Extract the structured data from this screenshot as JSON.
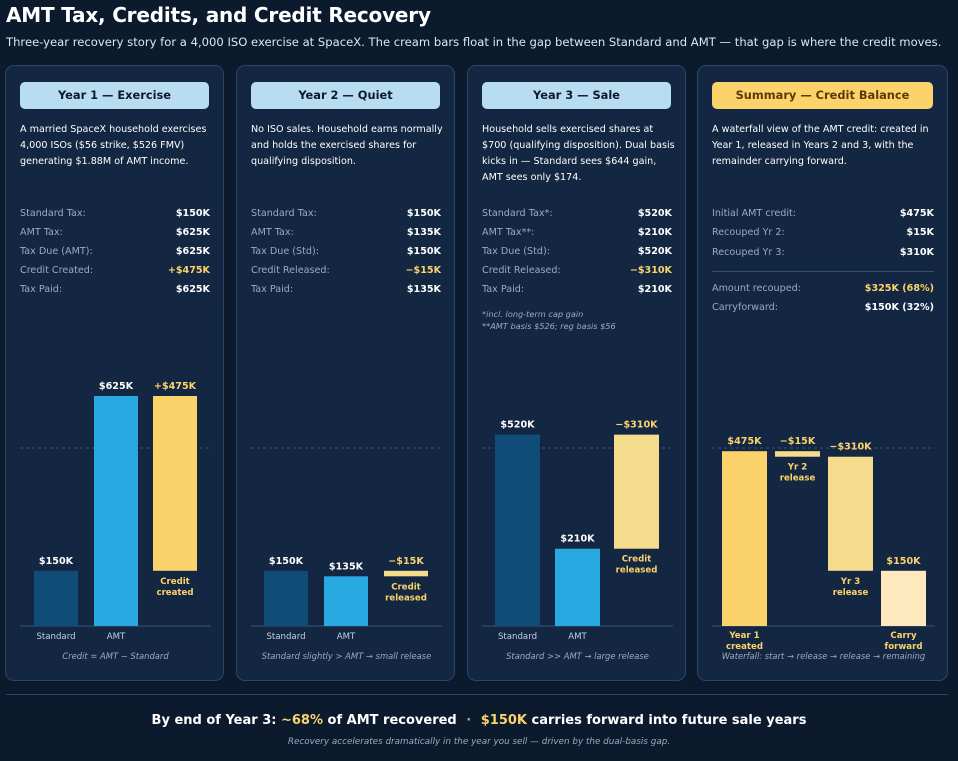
{
  "header": {
    "title": "AMT Tax, Credits, and Credit Recovery",
    "subtitle": "Three-year recovery story for a 4,000 ISO exercise at SpaceX. The cream bars float in the gap between Standard and AMT — that gap is where the credit moves."
  },
  "colors": {
    "standard": "#0f4d78",
    "amt": "#29a9e1",
    "credit": "#fcd36b",
    "release": "#f5dc8c",
    "carryforward": "#fde9bd",
    "label_gold": "#fcd36b"
  },
  "panels": [
    {
      "header": "Year 1 — Exercise",
      "description": "A married SpaceX household exercises 4,000 ISOs ($56 strike, $526 FMV) generating $1.88M of AMT income.",
      "stats": [
        {
          "label": "Standard Tax:",
          "value": "$150K"
        },
        {
          "label": "AMT Tax:",
          "value": "$625K"
        },
        {
          "label": "Tax Due (AMT):",
          "value": "$625K"
        },
        {
          "label": "Credit Created:",
          "value": "+$475K"
        },
        {
          "label": "Tax Paid:",
          "value": "$625K"
        }
      ],
      "caption": "Credit = AMT − Standard"
    },
    {
      "header": "Year 2 — Quiet",
      "description": "No ISO sales. Household earns normally and holds the exercised shares for qualifying disposition.",
      "stats": [
        {
          "label": "Standard Tax:",
          "value": "$150K"
        },
        {
          "label": "AMT Tax:",
          "value": "$135K"
        },
        {
          "label": "Tax Due (Std):",
          "value": "$150K"
        },
        {
          "label": "Credit Released:",
          "value": "−$15K"
        },
        {
          "label": "Tax Paid:",
          "value": "$135K"
        }
      ],
      "caption": "Standard slightly > AMT → small release"
    },
    {
      "header": "Year 3 — Sale",
      "description": "Household sells exercised shares at $700 (qualifying disposition). Dual basis kicks in — Standard sees $644 gain, AMT sees only $174.",
      "stats": [
        {
          "label": "Standard Tax*:",
          "value": "$520K"
        },
        {
          "label": "AMT Tax**:",
          "value": "$210K"
        },
        {
          "label": "Tax Due (Std):",
          "value": "$520K"
        },
        {
          "label": "Credit Released:",
          "value": "−$310K"
        },
        {
          "label": "Tax Paid:",
          "value": "$210K"
        }
      ],
      "footnotes": [
        "*incl. long-term cap gain",
        "**AMT basis $526; reg basis $56"
      ],
      "caption": "Standard >> AMT → large release"
    },
    {
      "header": "Summary — Credit Balance",
      "description": "A waterfall view of the AMT credit: created in Year 1, released in Years 2 and 3, with the remainder carrying forward.",
      "stats": [
        {
          "label": "Initial AMT credit:",
          "value": "$475K"
        },
        {
          "label": "Recouped Yr 2:",
          "value": "$15K"
        },
        {
          "label": "Recouped Yr 3:",
          "value": "$310K"
        }
      ],
      "stats2": [
        {
          "label": "Amount recouped:",
          "value": "$325K (68%)"
        },
        {
          "label": "Carryforward:",
          "value": "$150K (32%)"
        }
      ],
      "caption": "Waterfall: start → release → release → remaining"
    }
  ],
  "chart_data": [
    {
      "type": "bar",
      "panel": "Year 1 — Exercise",
      "unit": "$K",
      "ylim": [
        0,
        750
      ],
      "bars": [
        {
          "category": "Standard",
          "base": 0,
          "value": 150,
          "label": "$150K",
          "series": "standard"
        },
        {
          "category": "AMT",
          "base": 0,
          "value": 625,
          "label": "$625K",
          "series": "amt"
        },
        {
          "category": "Credit created",
          "base": 150,
          "value": 475,
          "label": "+$475K",
          "series": "credit",
          "inner_label": [
            "Credit",
            "created"
          ]
        }
      ]
    },
    {
      "type": "bar",
      "panel": "Year 2 — Quiet",
      "unit": "$K",
      "ylim": [
        0,
        750
      ],
      "bars": [
        {
          "category": "Standard",
          "base": 0,
          "value": 150,
          "label": "$150K",
          "series": "standard"
        },
        {
          "category": "AMT",
          "base": 0,
          "value": 135,
          "label": "$135K",
          "series": "amt"
        },
        {
          "category": "Credit released",
          "base": 135,
          "value": 15,
          "label": "−$15K",
          "series": "release",
          "inner_label": [
            "Credit",
            "released"
          ]
        }
      ]
    },
    {
      "type": "bar",
      "panel": "Year 3 — Sale",
      "unit": "$K",
      "ylim": [
        0,
        750
      ],
      "bars": [
        {
          "category": "Standard",
          "base": 0,
          "value": 520,
          "label": "$520K",
          "series": "standard"
        },
        {
          "category": "AMT",
          "base": 0,
          "value": 210,
          "label": "$210K",
          "series": "amt"
        },
        {
          "category": "Credit released",
          "base": 210,
          "value": 310,
          "label": "−$310K",
          "series": "release",
          "inner_label": [
            "Credit",
            "released"
          ]
        }
      ]
    },
    {
      "type": "bar",
      "panel": "Summary — Credit Balance",
      "unit": "$K",
      "ylim": [
        0,
        750
      ],
      "waterfall": true,
      "bars": [
        {
          "category": "Year 1 created",
          "base": 0,
          "value": 475,
          "label": "$475K",
          "series": "credit",
          "cat_label": [
            "Year 1",
            "created"
          ]
        },
        {
          "category": "Yr 2 release",
          "base": 460,
          "value": 15,
          "label": "−$15K",
          "series": "release",
          "inner_label": [
            "Yr 2",
            "release"
          ]
        },
        {
          "category": "Yr 3 release",
          "base": 150,
          "value": 310,
          "label": "−$310K",
          "series": "release",
          "inner_label": [
            "Yr 3",
            "release"
          ]
        },
        {
          "category": "Carry forward",
          "base": 0,
          "value": 150,
          "label": "$150K",
          "series": "carryforward",
          "cat_label": [
            "Carry",
            "forward"
          ]
        }
      ]
    }
  ],
  "footer": {
    "part1": "By end of Year 3:",
    "pct": "~68%",
    "part2": "of AMT recovered",
    "sep": "·",
    "carry": "$150K",
    "part3": "carries forward into future sale years",
    "note": "Recovery accelerates dramatically in the year you sell — driven by the dual-basis gap."
  }
}
